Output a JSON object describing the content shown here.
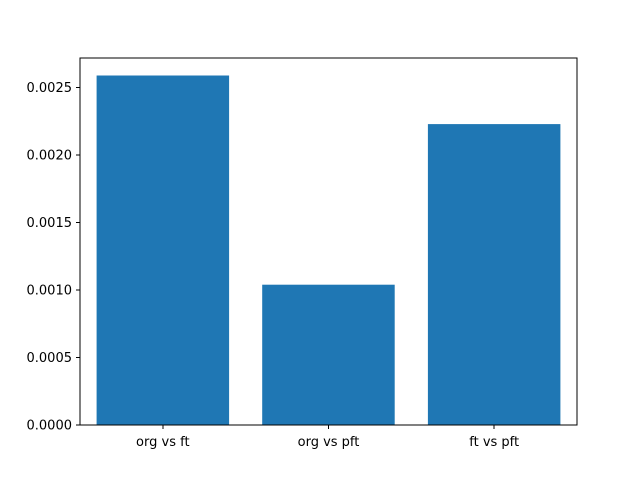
{
  "figure": {
    "background": "#ffffff",
    "axes_edge_color": "#000000",
    "tick_color": "#000000"
  },
  "chart_data": {
    "type": "bar",
    "title": "",
    "xlabel": "",
    "ylabel": "",
    "categories": [
      "org vs ft",
      "org vs pft",
      "ft vs pft"
    ],
    "values": [
      0.00259,
      0.00104,
      0.00223
    ],
    "bar_color": "#1f77b4",
    "ylim": [
      0,
      0.00272
    ],
    "yticks": [
      0.0,
      0.0005,
      0.001,
      0.0015,
      0.002,
      0.0025
    ],
    "ytick_labels": [
      "0.0000",
      "0.0005",
      "0.0010",
      "0.0015",
      "0.0020",
      "0.0025"
    ],
    "grid": false,
    "legend": "none",
    "bar_width_fraction": 0.8
  }
}
